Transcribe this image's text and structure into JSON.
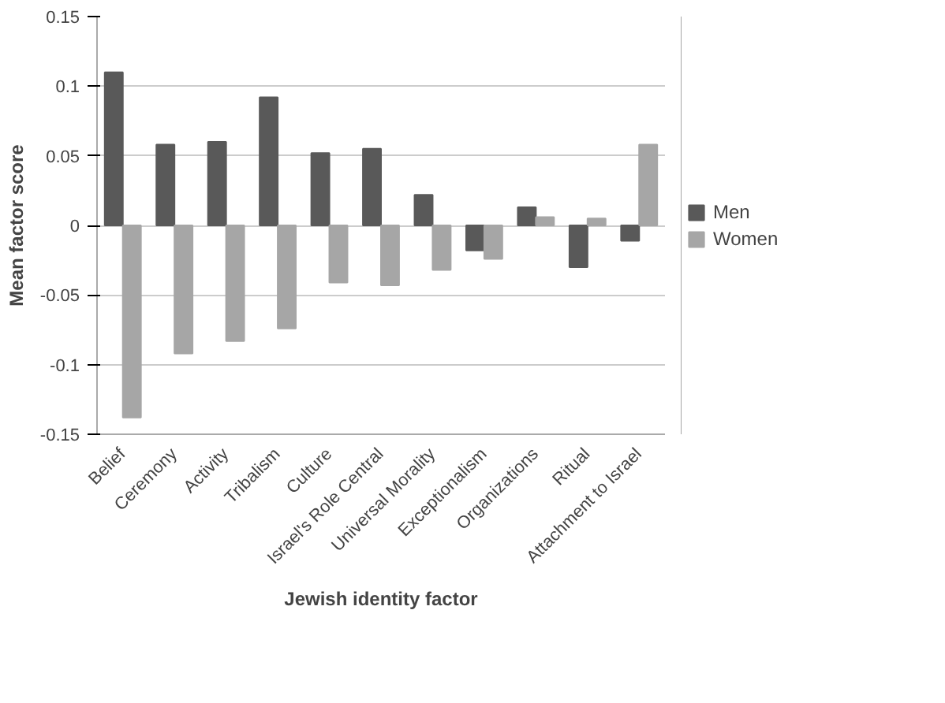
{
  "chart_data": {
    "type": "bar",
    "xlabel": "Jewish identity factor",
    "ylabel": "Mean factor score",
    "categories": [
      "Belief",
      "Ceremony",
      "Activity",
      "Tribalism",
      "Culture",
      "Israel's Role Central",
      "Universal Morality",
      "Exceptionalism",
      "Organizations",
      "Ritual",
      "Attachment to Israel"
    ],
    "series": [
      {
        "name": "Men",
        "color": "#595959",
        "values": [
          0.11,
          0.058,
          0.06,
          0.092,
          0.052,
          0.055,
          0.022,
          -0.018,
          0.013,
          -0.03,
          -0.011
        ]
      },
      {
        "name": "Women",
        "color": "#a6a6a6",
        "values": [
          -0.138,
          -0.092,
          -0.083,
          -0.074,
          -0.041,
          -0.043,
          -0.032,
          -0.024,
          0.006,
          0.005,
          0.058
        ]
      }
    ],
    "ylim": [
      -0.15,
      0.15
    ],
    "yticks": [
      -0.15,
      -0.1,
      -0.05,
      0,
      0.05,
      0.1,
      0.15
    ],
    "grid": "y",
    "legend": "right"
  }
}
